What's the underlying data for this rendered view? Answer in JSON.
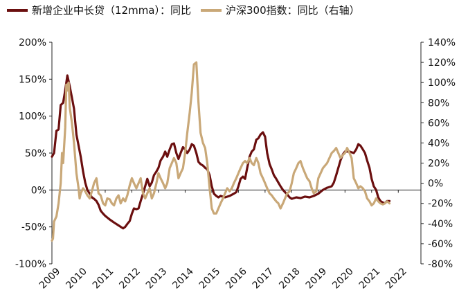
{
  "chart_data": {
    "type": "line",
    "x_tick_labels": [
      "2009",
      "2010",
      "2011",
      "2012",
      "2013",
      "2014",
      "2015",
      "2016",
      "2017",
      "2018",
      "2019",
      "2020",
      "2021",
      "2022"
    ],
    "y_left_ticks": [
      "200%",
      "150%",
      "100%",
      "50%",
      "0%",
      "-50%",
      "-100%"
    ],
    "y_right_ticks": [
      "140%",
      "120%",
      "100%",
      "80%",
      "60%",
      "40%",
      "20%",
      "0%",
      "-20%",
      "-40%",
      "-60%",
      "-80%"
    ],
    "ylim_left": [
      -100,
      200
    ],
    "ylim_right": [
      -80,
      140
    ],
    "xlim": [
      2009.0,
      2022.85
    ],
    "grid": false,
    "legend_position": "top",
    "series": [
      {
        "name": "新增企业中长贷（12mma）：同比",
        "axis": "left",
        "color": "#6b0f0f",
        "points": [
          [
            2009.0,
            45
          ],
          [
            2009.08,
            50
          ],
          [
            2009.17,
            80
          ],
          [
            2009.25,
            82
          ],
          [
            2009.33,
            115
          ],
          [
            2009.42,
            118
          ],
          [
            2009.5,
            135
          ],
          [
            2009.58,
            155
          ],
          [
            2009.67,
            140
          ],
          [
            2009.75,
            125
          ],
          [
            2009.83,
            110
          ],
          [
            2009.92,
            75
          ],
          [
            2010.0,
            60
          ],
          [
            2010.08,
            45
          ],
          [
            2010.17,
            25
          ],
          [
            2010.25,
            10
          ],
          [
            2010.33,
            0
          ],
          [
            2010.42,
            -5
          ],
          [
            2010.5,
            -10
          ],
          [
            2010.58,
            -12
          ],
          [
            2010.67,
            -15
          ],
          [
            2010.75,
            -20
          ],
          [
            2010.83,
            -28
          ],
          [
            2010.92,
            -32
          ],
          [
            2011.0,
            -35
          ],
          [
            2011.17,
            -40
          ],
          [
            2011.33,
            -44
          ],
          [
            2011.5,
            -48
          ],
          [
            2011.67,
            -52
          ],
          [
            2011.75,
            -50
          ],
          [
            2011.83,
            -46
          ],
          [
            2011.92,
            -42
          ],
          [
            2012.0,
            -32
          ],
          [
            2012.08,
            -25
          ],
          [
            2012.17,
            -26
          ],
          [
            2012.25,
            -25
          ],
          [
            2012.33,
            -15
          ],
          [
            2012.42,
            -5
          ],
          [
            2012.5,
            5
          ],
          [
            2012.58,
            15
          ],
          [
            2012.67,
            5
          ],
          [
            2012.75,
            10
          ],
          [
            2012.83,
            20
          ],
          [
            2012.92,
            25
          ],
          [
            2013.0,
            30
          ],
          [
            2013.08,
            40
          ],
          [
            2013.17,
            45
          ],
          [
            2013.25,
            52
          ],
          [
            2013.33,
            45
          ],
          [
            2013.42,
            55
          ],
          [
            2013.5,
            62
          ],
          [
            2013.58,
            63
          ],
          [
            2013.67,
            50
          ],
          [
            2013.75,
            42
          ],
          [
            2013.83,
            50
          ],
          [
            2013.92,
            58
          ],
          [
            2014.0,
            55
          ],
          [
            2014.08,
            50
          ],
          [
            2014.17,
            55
          ],
          [
            2014.25,
            62
          ],
          [
            2014.33,
            60
          ],
          [
            2014.42,
            50
          ],
          [
            2014.5,
            38
          ],
          [
            2014.58,
            35
          ],
          [
            2014.67,
            33
          ],
          [
            2014.75,
            30
          ],
          [
            2014.83,
            28
          ],
          [
            2014.92,
            20
          ],
          [
            2015.0,
            5
          ],
          [
            2015.08,
            -5
          ],
          [
            2015.17,
            -8
          ],
          [
            2015.25,
            -10
          ],
          [
            2015.33,
            -8
          ],
          [
            2015.5,
            -10
          ],
          [
            2015.67,
            -8
          ],
          [
            2015.83,
            -5
          ],
          [
            2015.92,
            -3
          ],
          [
            2016.0,
            5
          ],
          [
            2016.08,
            15
          ],
          [
            2016.17,
            18
          ],
          [
            2016.25,
            15
          ],
          [
            2016.33,
            30
          ],
          [
            2016.42,
            45
          ],
          [
            2016.5,
            52
          ],
          [
            2016.58,
            55
          ],
          [
            2016.67,
            68
          ],
          [
            2016.75,
            70
          ],
          [
            2016.83,
            75
          ],
          [
            2016.92,
            78
          ],
          [
            2017.0,
            72
          ],
          [
            2017.08,
            50
          ],
          [
            2017.17,
            35
          ],
          [
            2017.25,
            28
          ],
          [
            2017.33,
            20
          ],
          [
            2017.42,
            15
          ],
          [
            2017.5,
            10
          ],
          [
            2017.58,
            5
          ],
          [
            2017.67,
            0
          ],
          [
            2017.75,
            -3
          ],
          [
            2017.83,
            -6
          ],
          [
            2017.92,
            -10
          ],
          [
            2018.0,
            -12
          ],
          [
            2018.17,
            -10
          ],
          [
            2018.33,
            -11
          ],
          [
            2018.5,
            -9
          ],
          [
            2018.67,
            -10
          ],
          [
            2018.83,
            -8
          ],
          [
            2019.0,
            -5
          ],
          [
            2019.17,
            0
          ],
          [
            2019.33,
            3
          ],
          [
            2019.5,
            5
          ],
          [
            2019.58,
            10
          ],
          [
            2019.67,
            20
          ],
          [
            2019.75,
            30
          ],
          [
            2019.83,
            40
          ],
          [
            2019.92,
            48
          ],
          [
            2020.0,
            52
          ],
          [
            2020.17,
            52
          ],
          [
            2020.33,
            50
          ],
          [
            2020.42,
            55
          ],
          [
            2020.5,
            62
          ],
          [
            2020.58,
            60
          ],
          [
            2020.67,
            55
          ],
          [
            2020.75,
            50
          ],
          [
            2020.83,
            40
          ],
          [
            2020.92,
            30
          ],
          [
            2021.0,
            15
          ],
          [
            2021.08,
            5
          ],
          [
            2021.17,
            0
          ],
          [
            2021.25,
            -10
          ],
          [
            2021.33,
            -15
          ],
          [
            2021.42,
            -17
          ],
          [
            2021.5,
            -18
          ],
          [
            2021.58,
            -15
          ],
          [
            2021.67,
            -15
          ]
        ]
      },
      {
        "name": "沪深300指数：同比（右轴）",
        "axis": "right",
        "color": "#c9a878",
        "points": [
          [
            2009.0,
            -57
          ],
          [
            2009.04,
            -55
          ],
          [
            2009.08,
            -38
          ],
          [
            2009.17,
            -33
          ],
          [
            2009.25,
            -20
          ],
          [
            2009.33,
            0
          ],
          [
            2009.38,
            30
          ],
          [
            2009.42,
            20
          ],
          [
            2009.5,
            55
          ],
          [
            2009.54,
            98
          ],
          [
            2009.58,
            92
          ],
          [
            2009.63,
            100
          ],
          [
            2009.67,
            75
          ],
          [
            2009.75,
            60
          ],
          [
            2009.83,
            40
          ],
          [
            2009.92,
            10
          ],
          [
            2010.0,
            -5
          ],
          [
            2010.04,
            -15
          ],
          [
            2010.08,
            -10
          ],
          [
            2010.17,
            -5
          ],
          [
            2010.25,
            -8
          ],
          [
            2010.33,
            -12
          ],
          [
            2010.42,
            -15
          ],
          [
            2010.5,
            -8
          ],
          [
            2010.58,
            0
          ],
          [
            2010.67,
            5
          ],
          [
            2010.75,
            -10
          ],
          [
            2010.83,
            -12
          ],
          [
            2010.92,
            -20
          ],
          [
            2011.0,
            -22
          ],
          [
            2011.08,
            -15
          ],
          [
            2011.17,
            -16
          ],
          [
            2011.25,
            -20
          ],
          [
            2011.33,
            -22
          ],
          [
            2011.42,
            -15
          ],
          [
            2011.5,
            -12
          ],
          [
            2011.58,
            -20
          ],
          [
            2011.67,
            -15
          ],
          [
            2011.75,
            -18
          ],
          [
            2011.83,
            -12
          ],
          [
            2011.92,
            -2
          ],
          [
            2012.0,
            5
          ],
          [
            2012.08,
            0
          ],
          [
            2012.17,
            -5
          ],
          [
            2012.25,
            0
          ],
          [
            2012.33,
            5
          ],
          [
            2012.42,
            -10
          ],
          [
            2012.5,
            -15
          ],
          [
            2012.58,
            -10
          ],
          [
            2012.67,
            -5
          ],
          [
            2012.75,
            -15
          ],
          [
            2012.83,
            -10
          ],
          [
            2012.92,
            0
          ],
          [
            2013.0,
            10
          ],
          [
            2013.08,
            5
          ],
          [
            2013.17,
            0
          ],
          [
            2013.25,
            -5
          ],
          [
            2013.33,
            0
          ],
          [
            2013.42,
            15
          ],
          [
            2013.5,
            20
          ],
          [
            2013.58,
            25
          ],
          [
            2013.67,
            20
          ],
          [
            2013.75,
            5
          ],
          [
            2013.83,
            10
          ],
          [
            2013.92,
            15
          ],
          [
            2014.0,
            30
          ],
          [
            2014.08,
            50
          ],
          [
            2014.17,
            70
          ],
          [
            2014.25,
            90
          ],
          [
            2014.33,
            118
          ],
          [
            2014.42,
            120
          ],
          [
            2014.5,
            80
          ],
          [
            2014.58,
            50
          ],
          [
            2014.67,
            40
          ],
          [
            2014.75,
            35
          ],
          [
            2014.83,
            20
          ],
          [
            2014.92,
            -5
          ],
          [
            2015.0,
            -25
          ],
          [
            2015.08,
            -30
          ],
          [
            2015.17,
            -30
          ],
          [
            2015.25,
            -25
          ],
          [
            2015.33,
            -20
          ],
          [
            2015.42,
            -15
          ],
          [
            2015.5,
            -10
          ],
          [
            2015.58,
            -5
          ],
          [
            2015.67,
            -8
          ],
          [
            2015.75,
            -5
          ],
          [
            2015.83,
            0
          ],
          [
            2015.92,
            5
          ],
          [
            2016.0,
            10
          ],
          [
            2016.08,
            15
          ],
          [
            2016.17,
            20
          ],
          [
            2016.25,
            22
          ],
          [
            2016.33,
            20
          ],
          [
            2016.42,
            25
          ],
          [
            2016.5,
            20
          ],
          [
            2016.58,
            18
          ],
          [
            2016.67,
            25
          ],
          [
            2016.75,
            20
          ],
          [
            2016.83,
            10
          ],
          [
            2016.92,
            5
          ],
          [
            2017.0,
            0
          ],
          [
            2017.08,
            -5
          ],
          [
            2017.17,
            -10
          ],
          [
            2017.25,
            -12
          ],
          [
            2017.33,
            -15
          ],
          [
            2017.42,
            -18
          ],
          [
            2017.5,
            -20
          ],
          [
            2017.58,
            -25
          ],
          [
            2017.67,
            -20
          ],
          [
            2017.75,
            -15
          ],
          [
            2017.83,
            -10
          ],
          [
            2017.92,
            -8
          ],
          [
            2018.0,
            0
          ],
          [
            2018.08,
            10
          ],
          [
            2018.17,
            15
          ],
          [
            2018.25,
            20
          ],
          [
            2018.33,
            22
          ],
          [
            2018.42,
            15
          ],
          [
            2018.5,
            10
          ],
          [
            2018.58,
            5
          ],
          [
            2018.67,
            2
          ],
          [
            2018.75,
            -5
          ],
          [
            2018.83,
            -10
          ],
          [
            2018.92,
            -8
          ],
          [
            2019.0,
            5
          ],
          [
            2019.17,
            15
          ],
          [
            2019.33,
            20
          ],
          [
            2019.5,
            30
          ],
          [
            2019.58,
            32
          ],
          [
            2019.67,
            35
          ],
          [
            2019.75,
            30
          ],
          [
            2019.83,
            25
          ],
          [
            2019.92,
            28
          ],
          [
            2020.0,
            30
          ],
          [
            2020.08,
            35
          ],
          [
            2020.17,
            30
          ],
          [
            2020.25,
            25
          ],
          [
            2020.33,
            5
          ],
          [
            2020.42,
            0
          ],
          [
            2020.5,
            -5
          ],
          [
            2020.58,
            -3
          ],
          [
            2020.67,
            -5
          ],
          [
            2020.75,
            -8
          ],
          [
            2020.83,
            -15
          ],
          [
            2020.92,
            -18
          ],
          [
            2021.0,
            -22
          ],
          [
            2021.08,
            -20
          ],
          [
            2021.17,
            -15
          ],
          [
            2021.25,
            -18
          ],
          [
            2021.33,
            -20
          ],
          [
            2021.42,
            -21
          ],
          [
            2021.5,
            -20
          ],
          [
            2021.58,
            -18
          ],
          [
            2021.67,
            -20
          ]
        ]
      }
    ]
  }
}
